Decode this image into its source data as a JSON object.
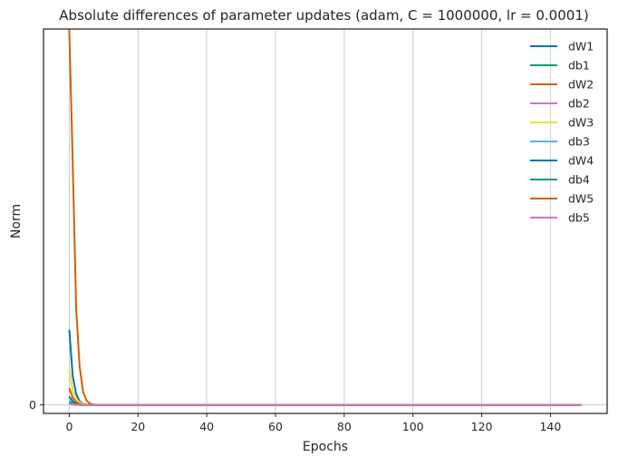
{
  "chart_data": {
    "type": "line",
    "title": "Absolute differences of parameter updates (adam, C = 1000000, lr = 0.0001)",
    "xlabel": "Epochs",
    "ylabel": "Norm",
    "xlim": [
      -7.5,
      156.5
    ],
    "ylim": [
      -0.35,
      15.5
    ],
    "x_ticks": [
      0,
      20,
      40,
      60,
      80,
      100,
      120,
      140
    ],
    "x_tick_labels": [
      "0",
      "20",
      "40",
      "60",
      "80",
      "100",
      "120",
      "140"
    ],
    "y_ticks": [
      0
    ],
    "y_tick_labels": [
      "0"
    ],
    "grid": "vertical",
    "legend_position": "top-right",
    "epochs": 150,
    "series": [
      {
        "name": "dW1",
        "color": "#0173b2",
        "values": [
          3.1,
          1.2,
          0.45,
          0.15,
          0.05,
          0.015,
          0.005,
          0.0
        ]
      },
      {
        "name": "db1",
        "color": "#029e73",
        "values": [
          0.12,
          0.05,
          0.02,
          0.01,
          0.0
        ]
      },
      {
        "name": "dW2",
        "color": "#d55e00",
        "values": [
          15.5,
          10.0,
          4.0,
          1.6,
          0.55,
          0.18,
          0.06,
          0.02,
          0.0
        ]
      },
      {
        "name": "db2",
        "color": "#cc78bc",
        "values": [
          0.08,
          0.03,
          0.01,
          0.0
        ]
      },
      {
        "name": "dW3",
        "color": "#ece133",
        "values": [
          1.45,
          0.6,
          0.25,
          0.1,
          0.04,
          0.01,
          0.0
        ]
      },
      {
        "name": "db3",
        "color": "#56b4e9",
        "values": [
          0.18,
          0.08,
          0.03,
          0.01,
          0.0
        ]
      },
      {
        "name": "dW4",
        "color": "#0173b2",
        "values": [
          0.35,
          0.15,
          0.06,
          0.02,
          0.0
        ]
      },
      {
        "name": "db4",
        "color": "#029e73",
        "values": [
          0.1,
          0.04,
          0.015,
          0.0
        ]
      },
      {
        "name": "dW5",
        "color": "#d55e00",
        "values": [
          0.7,
          0.3,
          0.12,
          0.04,
          0.01,
          0.0
        ]
      },
      {
        "name": "db5",
        "color": "#cc78bc",
        "values": [
          0.05,
          0.02,
          0.0
        ]
      }
    ]
  }
}
